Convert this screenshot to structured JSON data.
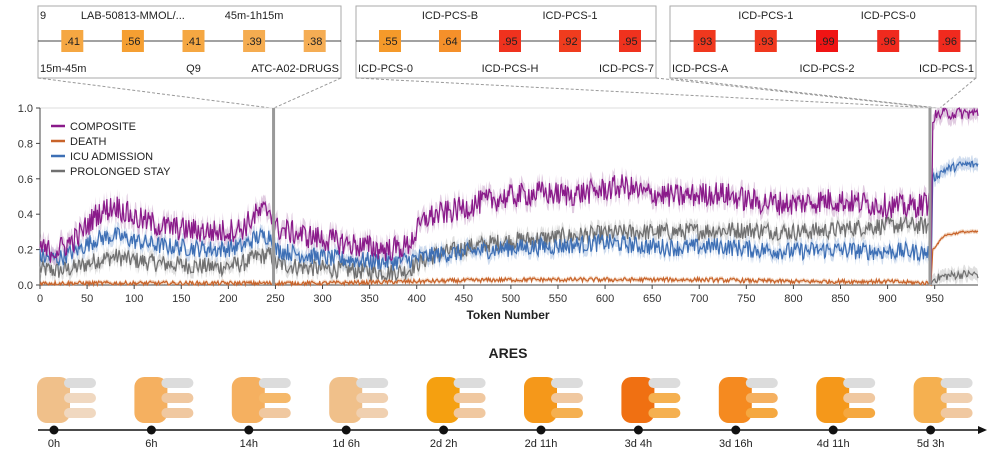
{
  "chart_data": {
    "type": "line",
    "title": "",
    "xlabel": "Token Number",
    "ylabel": "",
    "xlim": [
      0,
      996
    ],
    "ylim": [
      0,
      1.0
    ],
    "x_ticks": [
      0,
      50,
      100,
      150,
      200,
      250,
      300,
      350,
      400,
      450,
      500,
      550,
      600,
      650,
      700,
      750,
      800,
      850,
      900,
      950
    ],
    "y_ticks": [
      0.0,
      0.2,
      0.4,
      0.6,
      0.8,
      1.0
    ],
    "y_tick_labels": [
      "0.0",
      "0.2",
      "0.4",
      "0.6",
      "0.8",
      "1.0"
    ],
    "legend_position": "top-left",
    "vertical_markers": [
      248,
      945
    ],
    "series": [
      {
        "name": "COMPOSITE",
        "color": "#8a1a8a",
        "band_color": "#c9a2c9",
        "anchors": [
          [
            0,
            0.22
          ],
          [
            5,
            0.19
          ],
          [
            20,
            0.2
          ],
          [
            40,
            0.27
          ],
          [
            60,
            0.4
          ],
          [
            80,
            0.45
          ],
          [
            100,
            0.38
          ],
          [
            130,
            0.33
          ],
          [
            160,
            0.31
          ],
          [
            190,
            0.3
          ],
          [
            215,
            0.32
          ],
          [
            230,
            0.4
          ],
          [
            245,
            0.43
          ],
          [
            250,
            0.32
          ],
          [
            280,
            0.28
          ],
          [
            310,
            0.25
          ],
          [
            340,
            0.22
          ],
          [
            370,
            0.2
          ],
          [
            390,
            0.22
          ],
          [
            400,
            0.3
          ],
          [
            410,
            0.38
          ],
          [
            440,
            0.42
          ],
          [
            470,
            0.47
          ],
          [
            500,
            0.5
          ],
          [
            530,
            0.52
          ],
          [
            560,
            0.51
          ],
          [
            590,
            0.53
          ],
          [
            620,
            0.56
          ],
          [
            640,
            0.52
          ],
          [
            680,
            0.5
          ],
          [
            720,
            0.52
          ],
          [
            760,
            0.47
          ],
          [
            800,
            0.46
          ],
          [
            840,
            0.48
          ],
          [
            880,
            0.46
          ],
          [
            920,
            0.44
          ],
          [
            940,
            0.46
          ],
          [
            944,
            0.46
          ],
          [
            946,
            0.0
          ],
          [
            948,
            0.95
          ],
          [
            960,
            0.97
          ],
          [
            980,
            0.97
          ],
          [
            996,
            0.97
          ]
        ]
      },
      {
        "name": "DEATH",
        "color": "#c8632a",
        "band_color": "#e8b894",
        "anchors": [
          [
            0,
            0.01
          ],
          [
            100,
            0.01
          ],
          [
            200,
            0.01
          ],
          [
            300,
            0.01
          ],
          [
            400,
            0.02
          ],
          [
            500,
            0.03
          ],
          [
            600,
            0.03
          ],
          [
            700,
            0.03
          ],
          [
            800,
            0.02
          ],
          [
            900,
            0.02
          ],
          [
            944,
            0.01
          ],
          [
            946,
            0.0
          ],
          [
            948,
            0.2
          ],
          [
            960,
            0.28
          ],
          [
            980,
            0.3
          ],
          [
            996,
            0.3
          ]
        ]
      },
      {
        "name": "ICU ADMISSION",
        "color": "#3d6fb5",
        "band_color": "#a8c0e0",
        "anchors": [
          [
            0,
            0.16
          ],
          [
            20,
            0.15
          ],
          [
            40,
            0.2
          ],
          [
            60,
            0.26
          ],
          [
            80,
            0.28
          ],
          [
            100,
            0.25
          ],
          [
            130,
            0.22
          ],
          [
            160,
            0.21
          ],
          [
            190,
            0.2
          ],
          [
            215,
            0.22
          ],
          [
            230,
            0.27
          ],
          [
            245,
            0.28
          ],
          [
            250,
            0.2
          ],
          [
            280,
            0.17
          ],
          [
            310,
            0.15
          ],
          [
            340,
            0.14
          ],
          [
            370,
            0.13
          ],
          [
            390,
            0.14
          ],
          [
            400,
            0.15
          ],
          [
            420,
            0.17
          ],
          [
            460,
            0.19
          ],
          [
            500,
            0.21
          ],
          [
            550,
            0.22
          ],
          [
            600,
            0.24
          ],
          [
            640,
            0.22
          ],
          [
            680,
            0.21
          ],
          [
            720,
            0.22
          ],
          [
            760,
            0.2
          ],
          [
            800,
            0.19
          ],
          [
            840,
            0.2
          ],
          [
            880,
            0.19
          ],
          [
            920,
            0.19
          ],
          [
            944,
            0.18
          ],
          [
            946,
            0.0
          ],
          [
            948,
            0.6
          ],
          [
            960,
            0.65
          ],
          [
            980,
            0.68
          ],
          [
            996,
            0.68
          ]
        ]
      },
      {
        "name": "PROLONGED STAY",
        "color": "#707070",
        "band_color": "#c4c4c4",
        "anchors": [
          [
            0,
            0.09
          ],
          [
            20,
            0.08
          ],
          [
            40,
            0.1
          ],
          [
            60,
            0.14
          ],
          [
            80,
            0.16
          ],
          [
            100,
            0.14
          ],
          [
            130,
            0.12
          ],
          [
            160,
            0.11
          ],
          [
            190,
            0.1
          ],
          [
            215,
            0.12
          ],
          [
            230,
            0.16
          ],
          [
            245,
            0.17
          ],
          [
            250,
            0.12
          ],
          [
            280,
            0.1
          ],
          [
            310,
            0.09
          ],
          [
            340,
            0.08
          ],
          [
            370,
            0.07
          ],
          [
            390,
            0.08
          ],
          [
            400,
            0.12
          ],
          [
            420,
            0.17
          ],
          [
            460,
            0.22
          ],
          [
            500,
            0.25
          ],
          [
            550,
            0.27
          ],
          [
            600,
            0.29
          ],
          [
            640,
            0.3
          ],
          [
            680,
            0.3
          ],
          [
            720,
            0.31
          ],
          [
            760,
            0.31
          ],
          [
            800,
            0.3
          ],
          [
            840,
            0.31
          ],
          [
            880,
            0.33
          ],
          [
            920,
            0.34
          ],
          [
            944,
            0.33
          ],
          [
            946,
            0.0
          ],
          [
            948,
            0.03
          ],
          [
            960,
            0.05
          ],
          [
            980,
            0.06
          ],
          [
            996,
            0.06
          ]
        ]
      }
    ]
  },
  "callouts": [
    {
      "name": "callout-1",
      "cells": [
        {
          "value": 0.41,
          "label": ".41",
          "color": "#f5a742"
        },
        {
          "value": 0.56,
          "label": ".56",
          "color": "#f59f32"
        },
        {
          "value": 0.41,
          "label": ".41",
          "color": "#f5a742"
        },
        {
          "value": 0.39,
          "label": ".39",
          "color": "#f5ac50"
        },
        {
          "value": 0.38,
          "label": ".38",
          "color": "#f5ad54"
        }
      ],
      "top_labels": [
        "9",
        "LAB-50813-MMOL/...",
        "45m-1h15m"
      ],
      "bottom_labels": [
        "15m-45m",
        "Q9",
        "ATC-A02-DRUGS"
      ]
    },
    {
      "name": "callout-2",
      "cells": [
        {
          "value": 0.55,
          "label": ".55",
          "color": "#f59a2a"
        },
        {
          "value": 0.64,
          "label": ".64",
          "color": "#f5902a"
        },
        {
          "value": 0.95,
          "label": ".95",
          "color": "#f0321e"
        },
        {
          "value": 0.92,
          "label": ".92",
          "color": "#f03c1e"
        },
        {
          "value": 0.95,
          "label": ".95",
          "color": "#f0321e"
        }
      ],
      "top_labels": [
        "ICD-PCS-B",
        "ICD-PCS-1"
      ],
      "bottom_labels": [
        "ICD-PCS-0",
        "ICD-PCS-H",
        "ICD-PCS-7"
      ]
    },
    {
      "name": "callout-3",
      "cells": [
        {
          "value": 0.93,
          "label": ".93",
          "color": "#f0381e"
        },
        {
          "value": 0.93,
          "label": ".93",
          "color": "#f0381e"
        },
        {
          "value": 0.99,
          "label": ".99",
          "color": "#f01414"
        },
        {
          "value": 0.96,
          "label": ".96",
          "color": "#f02a1e"
        },
        {
          "value": 0.96,
          "label": ".96",
          "color": "#f02a1e"
        }
      ],
      "top_labels": [
        "ICD-PCS-1",
        "ICD-PCS-0"
      ],
      "bottom_labels": [
        "ICD-PCS-A",
        "ICD-PCS-2",
        "ICD-PCS-1"
      ]
    }
  ],
  "ares": {
    "title": "ARES",
    "steps": [
      {
        "time": "0h",
        "main": "#f0c08a",
        "bars": [
          "#dcdcdc",
          "#f0d8c0",
          "#f0d8c0"
        ]
      },
      {
        "time": "6h",
        "main": "#f5b060",
        "bars": [
          "#dcdcdc",
          "#f0c8a0",
          "#f0c8a0"
        ]
      },
      {
        "time": "14h",
        "main": "#f5b060",
        "bars": [
          "#dcdcdc",
          "#f5b86a",
          "#f0c8a0"
        ]
      },
      {
        "time": "1d 6h",
        "main": "#f0c08a",
        "bars": [
          "#dcdcdc",
          "#f0d0b0",
          "#f0d0b0"
        ]
      },
      {
        "time": "2d 2h",
        "main": "#f5a010",
        "bars": [
          "#dcdcdc",
          "#f0c8a0",
          "#f0c8a0"
        ]
      },
      {
        "time": "2d 11h",
        "main": "#f5981a",
        "bars": [
          "#dcdcdc",
          "#f0c8a0",
          "#f5b050"
        ]
      },
      {
        "time": "3d 4h",
        "main": "#f07012",
        "bars": [
          "#dcdcdc",
          "#f5b050",
          "#f5b050"
        ]
      },
      {
        "time": "3d 16h",
        "main": "#f58a20",
        "bars": [
          "#dcdcdc",
          "#f5b060",
          "#f5a840"
        ]
      },
      {
        "time": "4d 11h",
        "main": "#f5981a",
        "bars": [
          "#dcdcdc",
          "#f0c8a0",
          "#f5a840"
        ]
      },
      {
        "time": "5d 3h",
        "main": "#f5b050",
        "bars": [
          "#dcdcdc",
          "#f0d0b0",
          "#f0c8a0"
        ]
      }
    ]
  }
}
